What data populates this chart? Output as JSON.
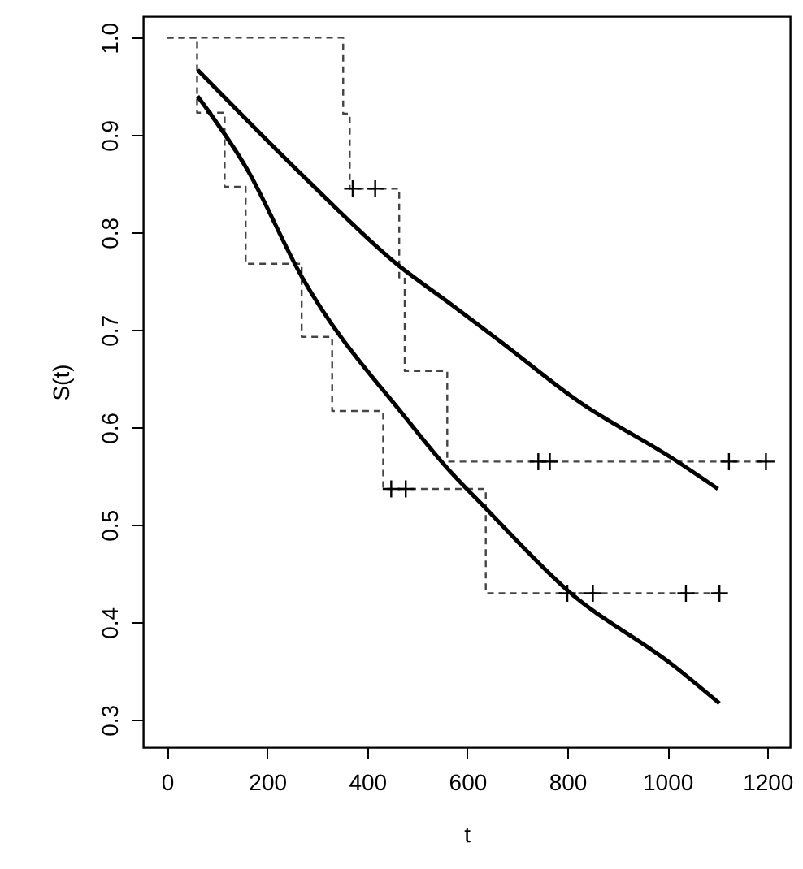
{
  "chart_data": {
    "type": "line",
    "xlabel": "t",
    "ylabel": "S(t)",
    "xlim": [
      -48,
      1245
    ],
    "ylim": [
      0.272,
      1.022
    ],
    "xticks": [
      0,
      200,
      400,
      600,
      800,
      1000,
      1200
    ],
    "yticks": [
      {
        "value": 0.3,
        "label": "0.3"
      },
      {
        "value": 0.4,
        "label": "0.4"
      },
      {
        "value": 0.5,
        "label": "0.5"
      },
      {
        "value": 0.6,
        "label": "0.6"
      },
      {
        "value": 0.7,
        "label": "0.7"
      },
      {
        "value": 0.8,
        "label": "0.8"
      },
      {
        "value": 0.9,
        "label": "0.9"
      },
      {
        "value": 1,
        "label": "1.0"
      }
    ],
    "grid": false,
    "series": [
      {
        "type": "step",
        "color": "#444444",
        "line_style": "dashed",
        "x": [
          0,
          352,
          365,
          464,
          475,
          560,
          1200
        ],
        "values": [
          1,
          0.922,
          0.845,
          0.754,
          0.658,
          0.565,
          0.565
        ]
      },
      {
        "type": "step",
        "color": "#444444",
        "line_style": "dashed",
        "x": [
          0,
          60,
          115,
          157,
          269,
          330,
          432,
          637,
          1104
        ],
        "values": [
          1,
          0.923,
          0.847,
          0.768,
          0.693,
          0.617,
          0.537,
          0.43,
          0.43
        ]
      },
      {
        "type": "scatter",
        "color": "#000000",
        "marker": "cross",
        "x": [
          371,
          416,
          742,
          765,
          1123,
          1197
        ],
        "values": [
          0.845,
          0.845,
          0.565,
          0.565,
          0.565,
          0.565
        ]
      },
      {
        "type": "scatter",
        "color": "#000000",
        "marker": "cross",
        "x": [
          448,
          477,
          800,
          851,
          1037,
          1104
        ],
        "values": [
          0.537,
          0.537,
          0.43,
          0.43,
          0.43,
          0.43
        ]
      },
      {
        "color": "#000000",
        "line_style": "solid",
        "x": [
          61,
          278,
          461,
          566,
          662,
          822,
          1014,
          1101
        ],
        "values": [
          0.967,
          0.855,
          0.767,
          0.727,
          0.69,
          0.627,
          0.567,
          0.537
        ]
      },
      {
        "color": "#000000",
        "line_style": "solid",
        "x": [
          61,
          160,
          269,
          480,
          557,
          637,
          800,
          1014,
          1104
        ],
        "values": [
          0.94,
          0.865,
          0.755,
          0.608,
          0.56,
          0.517,
          0.433,
          0.355,
          0.317
        ]
      }
    ]
  }
}
